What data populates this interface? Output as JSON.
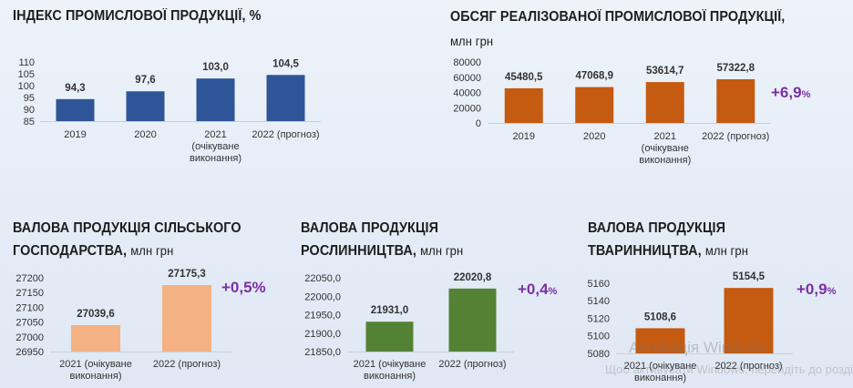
{
  "titles": {
    "index": {
      "text": "ІНДЕКС ПРОМИСЛОВОЇ ПРОДУКЦІЇ, %",
      "unit": ""
    },
    "volume": {
      "line1": "ОБСЯГ РЕАЛІЗОВАНОЇ ПРОМИСЛОВОЇ ПРОДУКЦІЇ,",
      "unit": "млн грн"
    },
    "agri": {
      "line1": "ВАЛОВА ПРОДУКЦІЯ СІЛЬСЬКОГО",
      "line2": "ГОСПОДАРСТВА,",
      "unit": "млн грн"
    },
    "crop": {
      "line1": "ВАЛОВА ПРОДУКЦІЯ",
      "line2": "РОСЛИННИЦТВА,",
      "unit": "млн грн"
    },
    "livestock": {
      "line1": "ВАЛОВА ПРОДУКЦІЯ",
      "line2": "ТВАРИННИЦТВА,",
      "unit": "млн грн"
    }
  },
  "growth": {
    "volume": {
      "value": "+6,9",
      "sign": "%"
    },
    "agri": {
      "value": "+0,5%",
      "sign": ""
    },
    "crop": {
      "value": "+0,4",
      "sign": "%"
    },
    "livestock": {
      "value": "+0,9",
      "sign": "%"
    }
  },
  "watermark": {
    "line1": "Активація Windows",
    "line2": "Щоб активувати Windows, перейдіть до розділу «Настройки»."
  },
  "chart_data": [
    {
      "id": "index",
      "type": "bar",
      "categories": [
        [
          "2019"
        ],
        [
          "2020"
        ],
        [
          "2021",
          "(очікуване",
          "виконання)"
        ],
        [
          "2022 (прогноз)"
        ]
      ],
      "values": [
        94.3,
        97.6,
        103.0,
        104.5
      ],
      "labels": [
        "94,3",
        "97,6",
        "103,0",
        "104,5"
      ],
      "ticks": [
        "85",
        "90",
        "95",
        "100",
        "105",
        "110"
      ],
      "ylim": [
        85,
        110
      ],
      "color": "#2e5597",
      "gridlines": false
    },
    {
      "id": "volume",
      "type": "bar",
      "categories": [
        [
          "2019"
        ],
        [
          "2020"
        ],
        [
          "2021",
          "(очікуване",
          "виконання)"
        ],
        [
          "2022 (прогноз)"
        ]
      ],
      "values": [
        45480.5,
        47068.9,
        53614.7,
        57322.8
      ],
      "labels": [
        "45480,5",
        "47068,9",
        "53614,7",
        "57322,8"
      ],
      "ticks": [
        "0",
        "20000",
        "40000",
        "60000",
        "80000"
      ],
      "ylim": [
        0,
        80000
      ],
      "color": "#c55a11",
      "gridlines": false
    },
    {
      "id": "agri",
      "type": "bar",
      "categories": [
        [
          "2021 (очікуване",
          "виконання)"
        ],
        [
          "2022 (прогноз)"
        ]
      ],
      "values": [
        27039.6,
        27175.3
      ],
      "labels": [
        "27039,6",
        "27175,3"
      ],
      "ticks": [
        "26950",
        "27000",
        "27050",
        "27100",
        "27150",
        "27200"
      ],
      "ylim": [
        26950,
        27200
      ],
      "color": "#f4b183",
      "gridlines": false
    },
    {
      "id": "crop",
      "type": "bar",
      "categories": [
        [
          "2021 (очікуване",
          "виконання)"
        ],
        [
          "2022 (прогноз)"
        ]
      ],
      "values": [
        21931.0,
        22020.8
      ],
      "labels": [
        "21931,0",
        "22020,8"
      ],
      "ticks": [
        "21850,0",
        "21900,0",
        "21950,0",
        "22000,0",
        "22050,0"
      ],
      "ylim": [
        21850,
        22050
      ],
      "color": "#548235",
      "gridlines": false
    },
    {
      "id": "livestock",
      "type": "bar",
      "categories": [
        [
          "2021 (очікуване",
          "виконання)"
        ],
        [
          "2022 (прогноз)"
        ]
      ],
      "values": [
        5108.6,
        5154.5
      ],
      "labels": [
        "5108,6",
        "5154,5"
      ],
      "ticks": [
        "5080",
        "5100",
        "5120",
        "5140",
        "5160"
      ],
      "ylim": [
        5080,
        5165
      ],
      "color": "#c55a11",
      "gridlines": false
    }
  ]
}
